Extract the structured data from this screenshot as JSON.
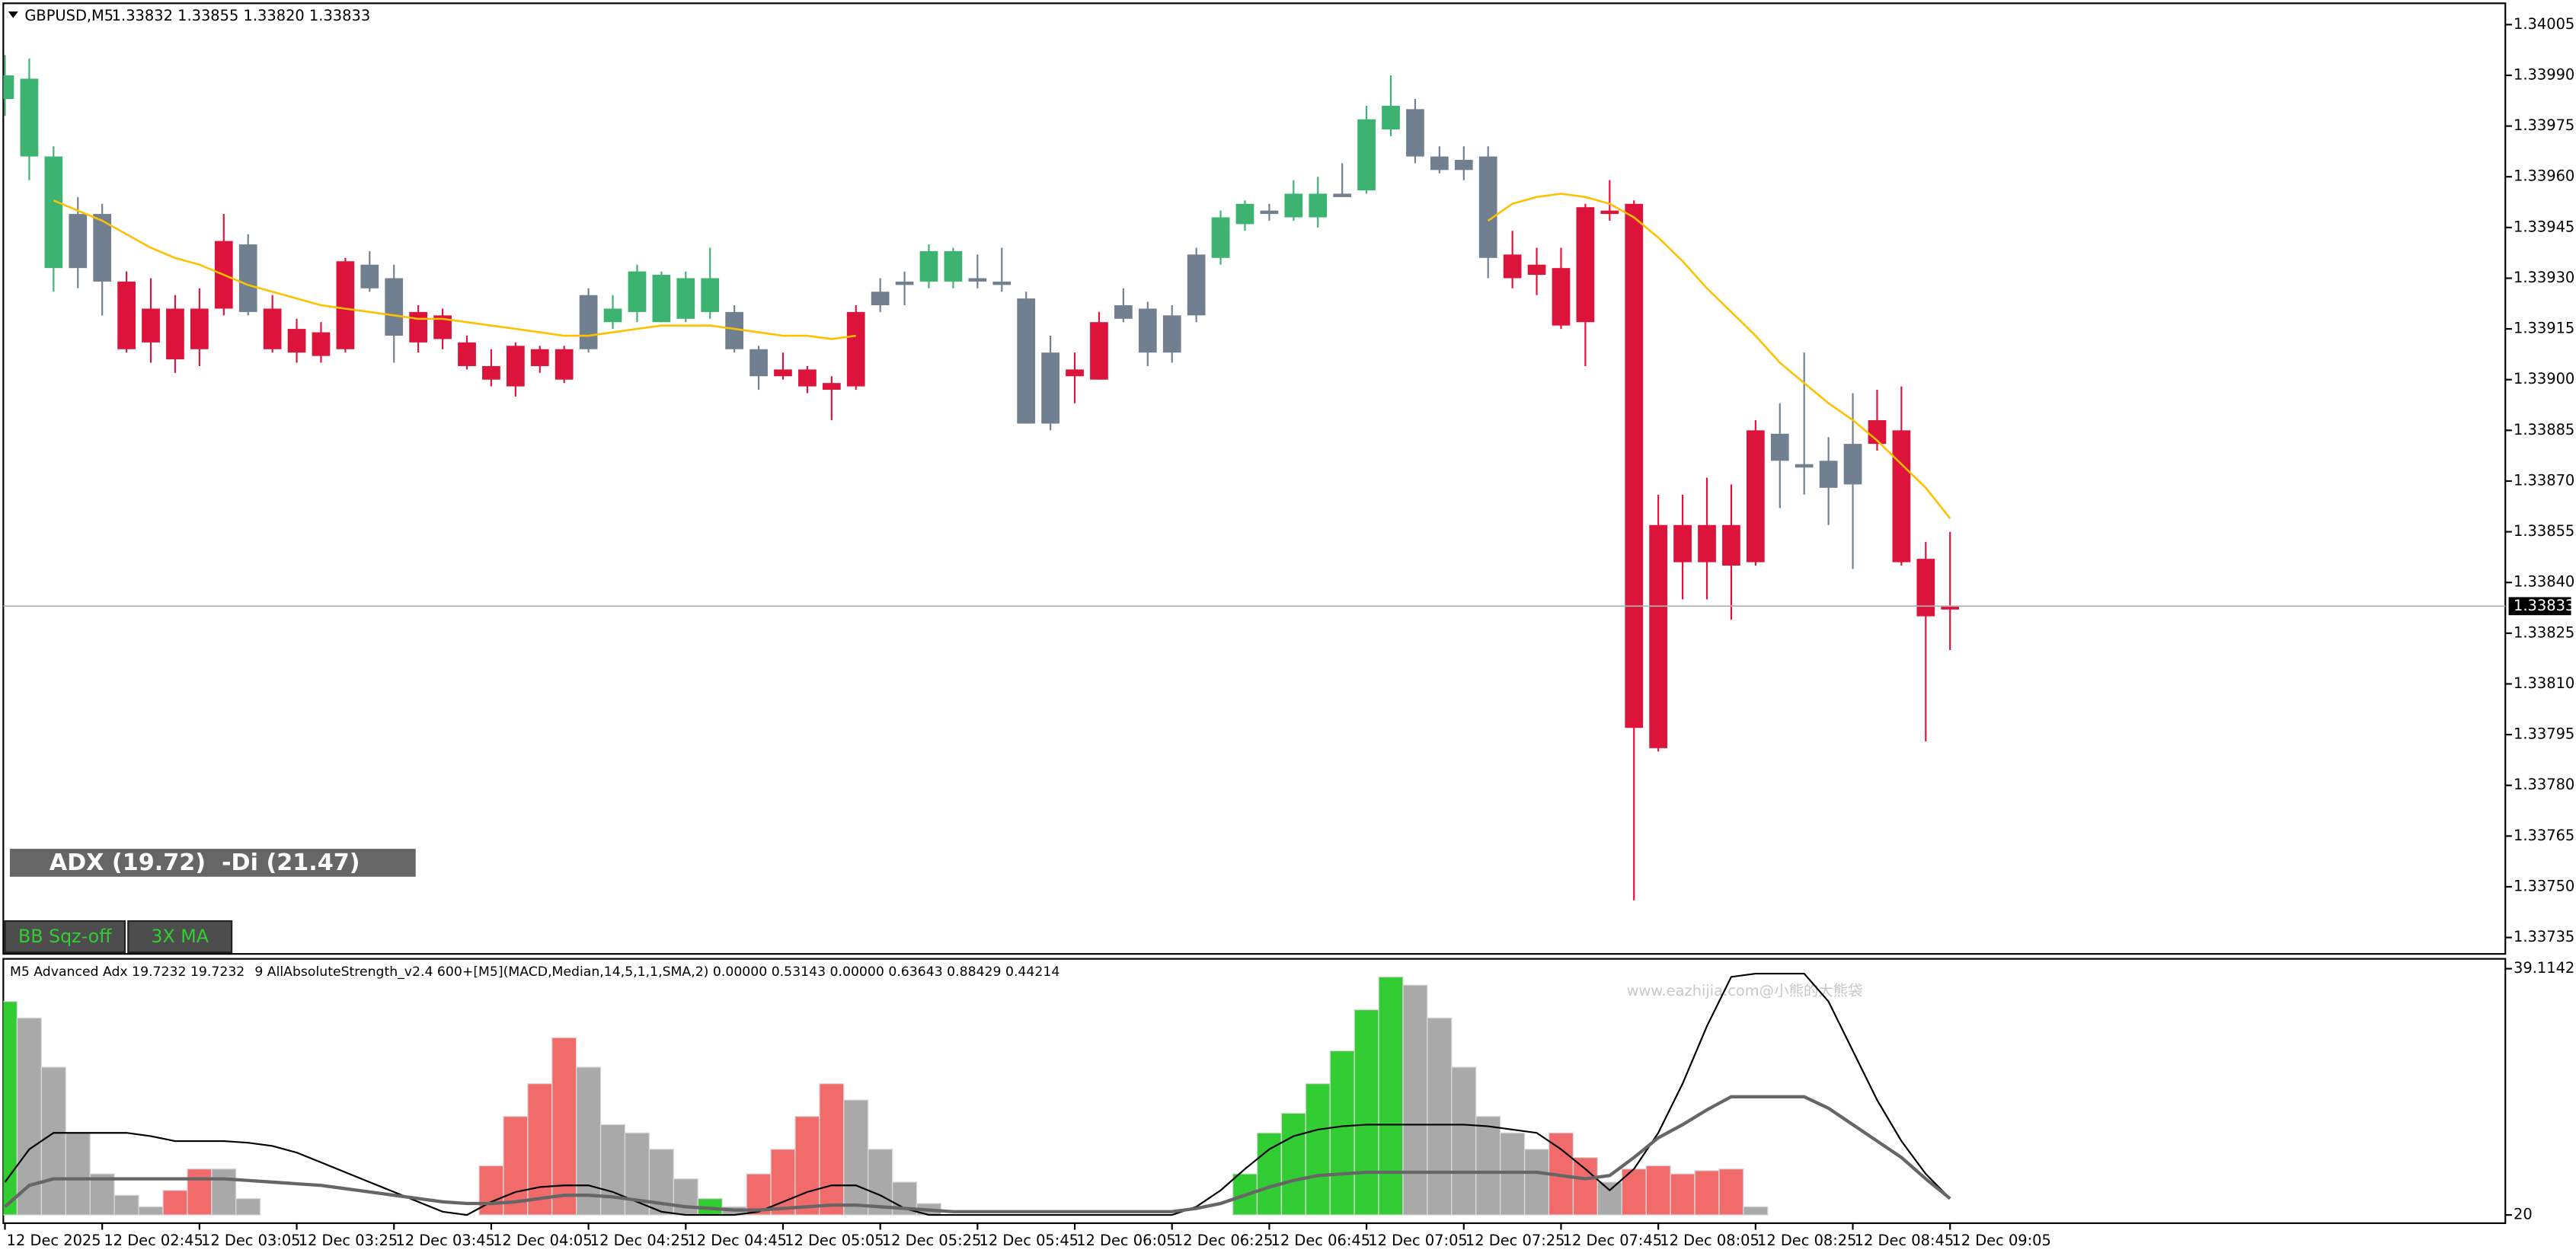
{
  "chart_data": [
    {
      "type": "candlestick",
      "title": "GBPUSD,M5",
      "subtitle": "1.33832 1.33855 1.33820 1.33833",
      "annotation": "ADX (19.72)  -Di (21.47)",
      "categories": [
        "12 Dec 2025",
        null,
        null,
        null,
        "12 Dec 02:45",
        null,
        null,
        null,
        "12 Dec 03:05",
        null,
        null,
        null,
        "12 Dec 03:25",
        null,
        null,
        null,
        "12 Dec 03:45",
        null,
        null,
        null,
        "12 Dec 04:05",
        null,
        null,
        null,
        "12 Dec 04:25",
        null,
        null,
        null,
        "12 Dec 04:45",
        null,
        null,
        null,
        "12 Dec 05:05",
        null,
        null,
        null,
        "12 Dec 05:25",
        null,
        null,
        null,
        "12 Dec 05:45",
        null,
        null,
        null,
        "12 Dec 06:05",
        null,
        null,
        null,
        "12 Dec 06:25",
        null,
        null,
        null,
        "12 Dec 06:45",
        null,
        null,
        null,
        "12 Dec 07:05",
        null,
        null,
        null,
        "12 Dec 07:25",
        null,
        null,
        null,
        "12 Dec 07:45",
        null,
        null,
        null,
        "12 Dec 08:05",
        null,
        null,
        null,
        "12 Dec 08:25",
        null,
        null,
        null,
        "12 Dec 08:45",
        null,
        null,
        null,
        "12 Dec 09:05"
      ],
      "open": [
        1.33983,
        1.33966,
        1.33933,
        1.33949,
        1.33949,
        1.33929,
        1.33921,
        1.33921,
        1.33921,
        1.33941,
        1.3394,
        1.33921,
        1.33915,
        1.33914,
        1.33935,
        1.33927,
        1.3393,
        1.3392,
        1.33919,
        1.33911,
        1.33904,
        1.3391,
        1.33909,
        1.33909,
        1.33909,
        1.33917,
        1.3392,
        1.33917,
        1.33918,
        1.3392,
        1.3392,
        1.33909,
        1.33903,
        1.33903,
        1.33899,
        1.33898,
        1.33922,
        1.33928,
        1.33929,
        1.33929,
        1.3393,
        1.33929,
        1.33924,
        1.33887,
        1.33903,
        1.339,
        1.33918,
        1.33921,
        1.33908,
        1.33919,
        1.33936,
        1.33946,
        1.33949,
        1.33948,
        1.33948,
        1.33954,
        1.33956,
        1.33974,
        1.3398,
        1.33966,
        1.33962,
        1.33966,
        1.33937,
        1.33934,
        1.33933,
        1.33951,
        1.3395,
        1.33952,
        1.33857,
        1.33857,
        1.33857,
        1.33857,
        1.33846,
        1.33876,
        1.33875,
        1.33868,
        1.33869,
        1.33888,
        1.33885,
        1.33847,
        1.33832
      ],
      "high": [
        1.33996,
        1.33995,
        1.33969,
        1.33954,
        1.33952,
        1.33932,
        1.3393,
        1.33925,
        1.33927,
        1.33949,
        1.33943,
        1.33925,
        1.33918,
        1.33917,
        1.33936,
        1.33938,
        1.33934,
        1.33922,
        1.33921,
        1.33913,
        1.33909,
        1.33911,
        1.3391,
        1.3391,
        1.33927,
        1.33925,
        1.33934,
        1.33932,
        1.33932,
        1.33939,
        1.33922,
        1.3391,
        1.33908,
        1.33904,
        1.33901,
        1.33922,
        1.3393,
        1.33932,
        1.3394,
        1.33939,
        1.33937,
        1.33939,
        1.33926,
        1.33913,
        1.33908,
        1.3392,
        1.33927,
        1.33923,
        1.33922,
        1.33939,
        1.3395,
        1.33953,
        1.33952,
        1.33959,
        1.3396,
        1.33964,
        1.33981,
        1.3399,
        1.33983,
        1.33969,
        1.33969,
        1.33969,
        1.33944,
        1.33939,
        1.33939,
        1.33952,
        1.33959,
        1.33953,
        1.33866,
        1.33866,
        1.33871,
        1.33869,
        1.33888,
        1.33893,
        1.33908,
        1.33883,
        1.33896,
        1.33897,
        1.33898,
        1.33852,
        1.33855
      ],
      "low": [
        1.33978,
        1.33959,
        1.33926,
        1.33927,
        1.33919,
        1.33908,
        1.33905,
        1.33902,
        1.33904,
        1.33919,
        1.33919,
        1.33908,
        1.33905,
        1.33905,
        1.33908,
        1.33926,
        1.33905,
        1.33908,
        1.33909,
        1.33903,
        1.33898,
        1.33895,
        1.33902,
        1.33899,
        1.33908,
        1.33915,
        1.33917,
        1.33917,
        1.33917,
        1.33918,
        1.33908,
        1.33897,
        1.339,
        1.33896,
        1.33888,
        1.33897,
        1.3392,
        1.33922,
        1.33927,
        1.33927,
        1.33927,
        1.33926,
        1.33887,
        1.33885,
        1.33893,
        1.339,
        1.33917,
        1.33904,
        1.33905,
        1.33917,
        1.33934,
        1.33944,
        1.33947,
        1.33947,
        1.33945,
        1.33954,
        1.33955,
        1.33972,
        1.33964,
        1.33961,
        1.33959,
        1.3393,
        1.33927,
        1.33925,
        1.33915,
        1.33904,
        1.33947,
        1.33746,
        1.3379,
        1.33835,
        1.33835,
        1.33829,
        1.33845,
        1.33862,
        1.33866,
        1.33857,
        1.33844,
        1.33879,
        1.33845,
        1.33793,
        1.3382
      ],
      "close": [
        1.3399,
        1.33989,
        1.33966,
        1.33933,
        1.33929,
        1.33909,
        1.33911,
        1.33906,
        1.33909,
        1.33921,
        1.3392,
        1.33909,
        1.33908,
        1.33907,
        1.33909,
        1.33934,
        1.33913,
        1.33911,
        1.33912,
        1.33904,
        1.339,
        1.33898,
        1.33904,
        1.339,
        1.33925,
        1.33921,
        1.33932,
        1.33931,
        1.3393,
        1.3393,
        1.33909,
        1.33901,
        1.33901,
        1.33898,
        1.33897,
        1.3392,
        1.33926,
        1.33929,
        1.33938,
        1.33938,
        1.33929,
        1.33928,
        1.33887,
        1.33908,
        1.33901,
        1.33917,
        1.33922,
        1.33908,
        1.33919,
        1.33937,
        1.33948,
        1.33952,
        1.3395,
        1.33955,
        1.33955,
        1.33955,
        1.33977,
        1.33981,
        1.33966,
        1.33962,
        1.33965,
        1.33936,
        1.3393,
        1.33931,
        1.33916,
        1.33917,
        1.33949,
        1.33797,
        1.33791,
        1.33846,
        1.33846,
        1.33845,
        1.33885,
        1.33884,
        1.33874,
        1.33876,
        1.33881,
        1.33881,
        1.33846,
        1.3383,
        1.33833
      ],
      "colors": [
        "#3cb371",
        "#3cb371",
        "#3cb371",
        "#708090",
        "#708090",
        "#dc143c",
        "#dc143c",
        "#dc143c",
        "#dc143c",
        "#dc143c",
        "#708090",
        "#dc143c",
        "#dc143c",
        "#dc143c",
        "#dc143c",
        "#708090",
        "#708090",
        "#dc143c",
        "#dc143c",
        "#dc143c",
        "#dc143c",
        "#dc143c",
        "#dc143c",
        "#dc143c",
        "#708090",
        "#3cb371",
        "#3cb371",
        "#3cb371",
        "#3cb371",
        "#3cb371",
        "#708090",
        "#708090",
        "#dc143c",
        "#dc143c",
        "#dc143c",
        "#dc143c",
        "#708090",
        "#708090",
        "#3cb371",
        "#3cb371",
        "#708090",
        "#708090",
        "#708090",
        "#708090",
        "#dc143c",
        "#dc143c",
        "#708090",
        "#708090",
        "#708090",
        "#708090",
        "#3cb371",
        "#3cb371",
        "#708090",
        "#3cb371",
        "#3cb371",
        "#708090",
        "#3cb371",
        "#3cb371",
        "#708090",
        "#708090",
        "#708090",
        "#708090",
        "#dc143c",
        "#dc143c",
        "#dc143c",
        "#dc143c",
        "#dc143c",
        "#dc143c",
        "#dc143c",
        "#dc143c",
        "#dc143c",
        "#dc143c",
        "#dc143c",
        "#708090",
        "#708090",
        "#708090",
        "#708090",
        "#dc143c",
        "#dc143c",
        "#dc143c",
        "#dc143c"
      ],
      "overlays": [
        {
          "color": "#ffc000",
          "values": [
            null,
            null,
            1.33953,
            1.3395,
            1.33947,
            1.33943,
            1.33939,
            1.33936,
            1.33934,
            1.33931,
            1.33928,
            1.33926,
            1.33924,
            1.33922,
            1.33921,
            1.3392,
            1.33919,
            1.33918,
            1.33918,
            1.33917,
            1.33916,
            1.33915,
            1.33914,
            1.33913,
            1.33913,
            1.33914,
            1.33915,
            1.33916,
            1.33916,
            1.33916,
            1.33915,
            1.33914,
            1.33913,
            1.33913,
            1.33912,
            1.33913,
            null,
            null,
            null,
            null,
            null,
            null,
            null,
            null,
            null,
            null,
            null,
            null,
            null,
            null,
            null,
            null,
            null,
            null,
            null,
            null,
            null,
            null,
            null,
            null,
            null,
            1.33947,
            1.33952,
            1.33954,
            1.33955,
            1.33954,
            1.33952,
            1.33948,
            1.33942,
            1.33935,
            1.33927,
            1.3392,
            1.33913,
            1.33905,
            1.33899,
            1.33893,
            1.33888,
            1.33882,
            1.33875,
            1.33868,
            1.33859
          ]
        }
      ],
      "price_line": {
        "value": 1.33833,
        "label": "1.33833"
      },
      "ylim": [
        1.3373,
        1.3401
      ],
      "yticks": [
        1.34005,
        {
          "value": 1.3399,
          "label": "1.33990"
        },
        1.33975,
        {
          "value": 1.3396,
          "label": "1.33960"
        },
        1.33945,
        {
          "value": 1.3393,
          "label": "1.33930"
        },
        1.33915,
        {
          "value": 1.339,
          "label": "1.33900"
        },
        1.33885,
        {
          "value": 1.3387,
          "label": "1.33870"
        },
        1.33855,
        {
          "value": 1.3384,
          "label": "1.33840"
        },
        1.33825,
        {
          "value": 1.3381,
          "label": "1.33810"
        },
        1.33795,
        {
          "value": 1.3378,
          "label": "1.33780"
        },
        1.33765,
        {
          "value": 1.3375,
          "label": "1.33750"
        },
        1.33735
      ],
      "grid": false
    },
    {
      "type": "bar",
      "title": "M5 Advanced Adx 19.7232 19.7232",
      "subtitle": "9 AllAbsoluteStrength_v2.4 600+[M5](MACD,Median,14,5,1,1,SMA,2) 0.00000 0.53143 0.00000 0.63643 0.88429 0.44214",
      "watermark": "www.eazhijia.com@小熊的大熊袋",
      "values": [
        36.57,
        35.29,
        31.47,
        26.37,
        23.19,
        21.53,
        20.64,
        21.91,
        23.57,
        23.57,
        21.27,
        20,
        20,
        20,
        20,
        20,
        20,
        20,
        20,
        20,
        23.82,
        27.65,
        30.19,
        33.76,
        31.47,
        27.01,
        26.37,
        25.1,
        22.8,
        21.27,
        20.64,
        23.19,
        25.1,
        27.65,
        30.19,
        28.92,
        25.1,
        22.55,
        20.89,
        20,
        20,
        20,
        20,
        20,
        20,
        20,
        20,
        20,
        20,
        20,
        20,
        23.19,
        26.37,
        27.9,
        30.19,
        32.74,
        35.93,
        38.48,
        37.84,
        35.29,
        31.47,
        27.65,
        26.37,
        25.1,
        26.37,
        24.46,
        22.55,
        23.57,
        23.82,
        23.19,
        23.44,
        23.57,
        20.64,
        20,
        20,
        20,
        20,
        20,
        20,
        20,
        20
      ],
      "colors": [
        "#32cd32",
        "#a9a9a9",
        "#a9a9a9",
        "#a9a9a9",
        "#a9a9a9",
        "#a9a9a9",
        "#a9a9a9",
        "#f26b6b",
        "#f26b6b",
        "#a9a9a9",
        "#a9a9a9",
        "#a9a9a9",
        "#a9a9a9",
        "#a9a9a9",
        "#a9a9a9",
        "#a9a9a9",
        "#a9a9a9",
        "#a9a9a9",
        "#a9a9a9",
        "#a9a9a9",
        "#f26b6b",
        "#f26b6b",
        "#f26b6b",
        "#f26b6b",
        "#a9a9a9",
        "#a9a9a9",
        "#a9a9a9",
        "#a9a9a9",
        "#a9a9a9",
        "#32cd32",
        "#a9a9a9",
        "#f26b6b",
        "#f26b6b",
        "#f26b6b",
        "#f26b6b",
        "#a9a9a9",
        "#a9a9a9",
        "#a9a9a9",
        "#a9a9a9",
        "#a9a9a9",
        "#a9a9a9",
        "#a9a9a9",
        "#a9a9a9",
        "#a9a9a9",
        "#a9a9a9",
        "#a9a9a9",
        "#a9a9a9",
        "#a9a9a9",
        "#a9a9a9",
        "#a9a9a9",
        "#a9a9a9",
        "#32cd32",
        "#32cd32",
        "#32cd32",
        "#32cd32",
        "#32cd32",
        "#32cd32",
        "#32cd32",
        "#a9a9a9",
        "#a9a9a9",
        "#a9a9a9",
        "#a9a9a9",
        "#a9a9a9",
        "#a9a9a9",
        "#f26b6b",
        "#f26b6b",
        "#a9a9a9",
        "#f26b6b",
        "#f26b6b",
        "#f26b6b",
        "#f26b6b",
        "#f26b6b",
        "#a9a9a9",
        "#a9a9a9",
        "#a9a9a9",
        "#a9a9a9",
        "#a9a9a9",
        "#a9a9a9",
        "#a9a9a9",
        "#a9a9a9",
        "#a9a9a9"
      ],
      "series": [
        {
          "color": "#000000",
          "values": [
            22.55,
            25.1,
            26.37,
            26.37,
            26.37,
            26.37,
            26.12,
            25.73,
            25.73,
            25.73,
            25.61,
            25.35,
            24.84,
            24.08,
            23.31,
            22.55,
            21.78,
            21.02,
            20.25,
            20,
            21.02,
            21.78,
            22.17,
            22.29,
            22.29,
            21.78,
            21.02,
            20.25,
            20,
            20,
            20,
            20.25,
            21.02,
            21.78,
            22.29,
            22.29,
            21.53,
            20.51,
            20,
            20,
            20,
            20,
            20,
            20,
            20,
            20,
            20,
            20,
            20,
            20.64,
            21.91,
            23.57,
            25.1,
            26.12,
            26.63,
            26.88,
            27.01,
            27.01,
            27.01,
            27.01,
            27.01,
            26.88,
            26.63,
            26.37,
            25.1,
            23.57,
            21.91,
            23.57,
            26.37,
            30.19,
            34.65,
            38.48,
            38.73,
            38.73,
            38.73,
            36.57,
            32.74,
            28.92,
            25.73,
            23.19,
            21.27
          ]
        },
        {
          "color": "#666666",
          "values": [
            20.64,
            22.29,
            22.8,
            22.8,
            22.8,
            22.8,
            22.8,
            22.8,
            22.8,
            22.8,
            22.68,
            22.55,
            22.42,
            22.29,
            22.04,
            21.78,
            21.53,
            21.27,
            21.02,
            20.89,
            20.89,
            21.02,
            21.27,
            21.53,
            21.53,
            21.4,
            21.15,
            20.89,
            20.64,
            20.51,
            20.38,
            20.38,
            20.51,
            20.64,
            20.76,
            20.76,
            20.64,
            20.51,
            20.38,
            20.25,
            20.25,
            20.25,
            20.25,
            20.25,
            20.25,
            20.25,
            20.25,
            20.25,
            20.25,
            20.51,
            20.89,
            21.53,
            22.17,
            22.68,
            23.06,
            23.19,
            23.31,
            23.31,
            23.31,
            23.31,
            23.31,
            23.31,
            23.31,
            23.31,
            23.06,
            22.8,
            23.06,
            24.46,
            25.99,
            27.01,
            28.16,
            29.17,
            29.17,
            29.17,
            29.17,
            28.28,
            27.01,
            25.73,
            24.46,
            22.8,
            21.27
          ]
        }
      ],
      "ylim": [
        20,
        39.1142
      ],
      "yticks": [
        39.1142,
        20
      ]
    }
  ],
  "toolbar": [
    "BB Sqz-off",
    "3X MA"
  ]
}
